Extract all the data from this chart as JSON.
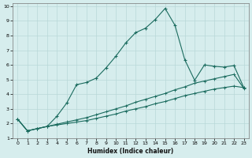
{
  "xlabel": "Humidex (Indice chaleur)",
  "bg_color": "#d6eded",
  "grid_color": "#b8d8d8",
  "line_color": "#1a6b5e",
  "xlim": [
    -0.5,
    23.5
  ],
  "ylim": [
    1,
    10.2
  ],
  "xticks": [
    0,
    1,
    2,
    3,
    4,
    5,
    6,
    7,
    8,
    9,
    10,
    11,
    12,
    13,
    14,
    15,
    16,
    17,
    18,
    19,
    20,
    21,
    22,
    23
  ],
  "yticks": [
    1,
    2,
    3,
    4,
    5,
    6,
    7,
    8,
    9,
    10
  ],
  "line1_x": [
    0,
    1,
    2,
    3,
    4,
    5,
    6,
    7,
    8,
    9,
    10,
    11,
    12,
    13,
    14,
    15,
    16,
    17,
    18,
    19,
    20,
    21,
    22,
    23
  ],
  "line1_y": [
    2.3,
    1.5,
    1.65,
    1.8,
    2.5,
    3.4,
    4.65,
    4.8,
    5.1,
    5.8,
    6.6,
    7.5,
    8.2,
    8.5,
    9.1,
    9.85,
    8.7,
    6.35,
    4.95,
    6.0,
    5.9,
    5.85,
    5.95,
    4.45
  ],
  "line2_x": [
    0,
    1,
    2,
    3,
    4,
    5,
    6,
    7,
    8,
    9,
    10,
    11,
    12,
    13,
    14,
    15,
    16,
    17,
    18,
    19,
    20,
    21,
    22,
    23
  ],
  "line2_y": [
    2.3,
    1.5,
    1.65,
    1.8,
    1.95,
    2.1,
    2.25,
    2.4,
    2.6,
    2.8,
    3.0,
    3.2,
    3.45,
    3.65,
    3.85,
    4.05,
    4.3,
    4.5,
    4.75,
    4.9,
    5.05,
    5.2,
    5.35,
    4.4
  ],
  "line3_x": [
    0,
    1,
    2,
    3,
    4,
    5,
    6,
    7,
    8,
    9,
    10,
    11,
    12,
    13,
    14,
    15,
    16,
    17,
    18,
    19,
    20,
    21,
    22,
    23
  ],
  "line3_y": [
    2.3,
    1.5,
    1.65,
    1.8,
    1.9,
    2.0,
    2.1,
    2.2,
    2.35,
    2.5,
    2.65,
    2.85,
    3.0,
    3.15,
    3.35,
    3.5,
    3.7,
    3.9,
    4.05,
    4.2,
    4.35,
    4.45,
    4.55,
    4.45
  ]
}
